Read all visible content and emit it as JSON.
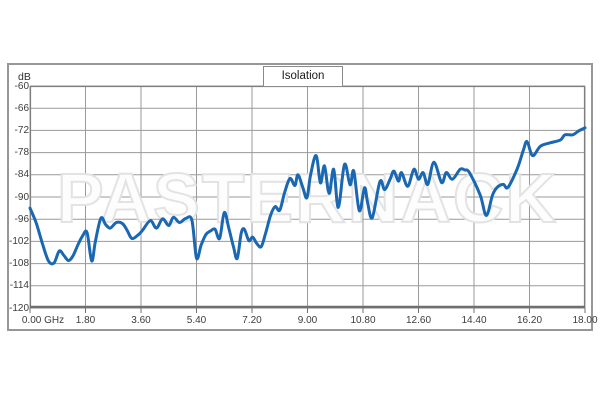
{
  "panel": {
    "unit_label": "dB",
    "watermark": "PASTERNACK",
    "border_color": "#979797"
  },
  "chart_data": {
    "type": "line",
    "title": "Isolation",
    "x_unit": "GHz",
    "y_unit": "dB",
    "xlim": [
      0,
      18
    ],
    "ylim": [
      -120,
      -60
    ],
    "grid": true,
    "legend": false,
    "x_tick_labels": [
      "0.00 GHz",
      "1.80",
      "3.60",
      "5.40",
      "7.20",
      "9.00",
      "10.80",
      "12.60",
      "14.40",
      "16.20",
      "18.00"
    ],
    "y_tick_labels": [
      "-60",
      "-66",
      "-72",
      "-78",
      "-84",
      "-90",
      "-96",
      "-102",
      "-108",
      "-114",
      "-120"
    ],
    "colors": {
      "line": "#1a67b2",
      "grid": "#9a9a9a",
      "frame": "#7d7d7d",
      "axis": "#6f6f6f",
      "tick_text": "#3c3c3c",
      "watermark_outline": "#e3e3e3"
    },
    "series": [
      {
        "name": "Isolation",
        "x": [
          0,
          0.2,
          0.4,
          0.6,
          0.78,
          0.95,
          1.1,
          1.25,
          1.4,
          1.55,
          1.7,
          1.85,
          2.0,
          2.12,
          2.3,
          2.45,
          2.6,
          2.8,
          3.0,
          3.15,
          3.3,
          3.5,
          3.65,
          3.9,
          4.1,
          4.3,
          4.5,
          4.65,
          4.85,
          5.05,
          5.25,
          5.4,
          5.55,
          5.7,
          5.85,
          6.0,
          6.15,
          6.3,
          6.45,
          6.6,
          6.72,
          6.85,
          6.95,
          7.1,
          7.22,
          7.35,
          7.5,
          7.65,
          7.8,
          7.95,
          8.1,
          8.25,
          8.43,
          8.59,
          8.69,
          8.85,
          8.98,
          9.1,
          9.28,
          9.42,
          9.55,
          9.7,
          9.85,
          10.0,
          10.2,
          10.38,
          10.5,
          10.68,
          10.85,
          10.95,
          11.1,
          11.35,
          11.5,
          11.68,
          11.8,
          11.95,
          12.05,
          12.25,
          12.45,
          12.6,
          12.75,
          12.9,
          13.1,
          13.35,
          13.5,
          13.7,
          13.95,
          14.1,
          14.25,
          14.6,
          14.8,
          15.0,
          15.15,
          15.35,
          15.5,
          15.8,
          16.0,
          16.12,
          16.3,
          16.55,
          16.85,
          17.2,
          17.35,
          17.6,
          17.8,
          18.0
        ],
        "y": [
          -93,
          -97,
          -102.5,
          -107.3,
          -107.8,
          -104.6,
          -105.8,
          -107.2,
          -105.8,
          -103,
          -100.6,
          -99.6,
          -107.3,
          -102,
          -95.7,
          -97.4,
          -98.4,
          -96.9,
          -97.2,
          -99,
          -101.2,
          -100.3,
          -99,
          -96.4,
          -98.4,
          -95.9,
          -97.7,
          -95.5,
          -96.9,
          -95.8,
          -96.3,
          -106.5,
          -103,
          -100.2,
          -99.2,
          -98.7,
          -101.2,
          -94.2,
          -98.5,
          -103.5,
          -106.6,
          -99.8,
          -98.7,
          -101.8,
          -100.8,
          -102.5,
          -103.4,
          -99.5,
          -95,
          -92.6,
          -93.6,
          -89,
          -85,
          -86.9,
          -84,
          -87.5,
          -90.2,
          -84,
          -78.8,
          -86.2,
          -81.6,
          -89,
          -82.5,
          -92.8,
          -81.2,
          -86.7,
          -83,
          -93.7,
          -87.5,
          -91.5,
          -95.6,
          -85.8,
          -88,
          -85.2,
          -83,
          -85.7,
          -83.4,
          -87.1,
          -82.5,
          -85.2,
          -83.4,
          -86.6,
          -80.6,
          -86.1,
          -83.4,
          -85.2,
          -82.5,
          -82.7,
          -83.4,
          -89.5,
          -95,
          -89.5,
          -87.4,
          -86.6,
          -87.4,
          -82.4,
          -77.4,
          -75,
          -78.8,
          -76.3,
          -75.4,
          -74.6,
          -73.2,
          -73.2,
          -72.1,
          -71.3
        ]
      }
    ]
  }
}
